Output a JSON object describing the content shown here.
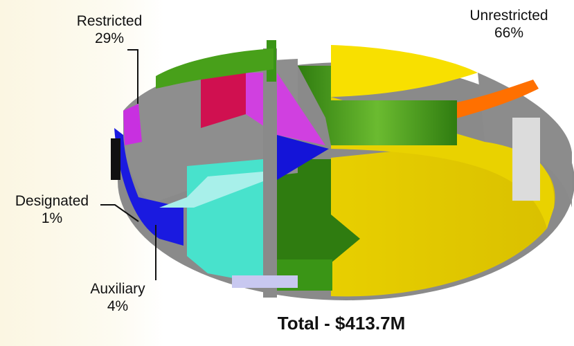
{
  "chart_data": {
    "type": "pie",
    "slices": [
      {
        "label": "Unrestricted",
        "pct_label": "66%",
        "value": 66,
        "color": "#f5dd00"
      },
      {
        "label": "Restricted",
        "pct_label": "29%",
        "value": 29,
        "color": "#2e8b12"
      },
      {
        "label": "Designated",
        "pct_label": "1%",
        "value": 1,
        "color": "#1414d8"
      },
      {
        "label": "Auxiliary",
        "pct_label": "4%",
        "value": 4,
        "color": "#45e0c8"
      }
    ],
    "total_label": "Total - $413.7M"
  }
}
